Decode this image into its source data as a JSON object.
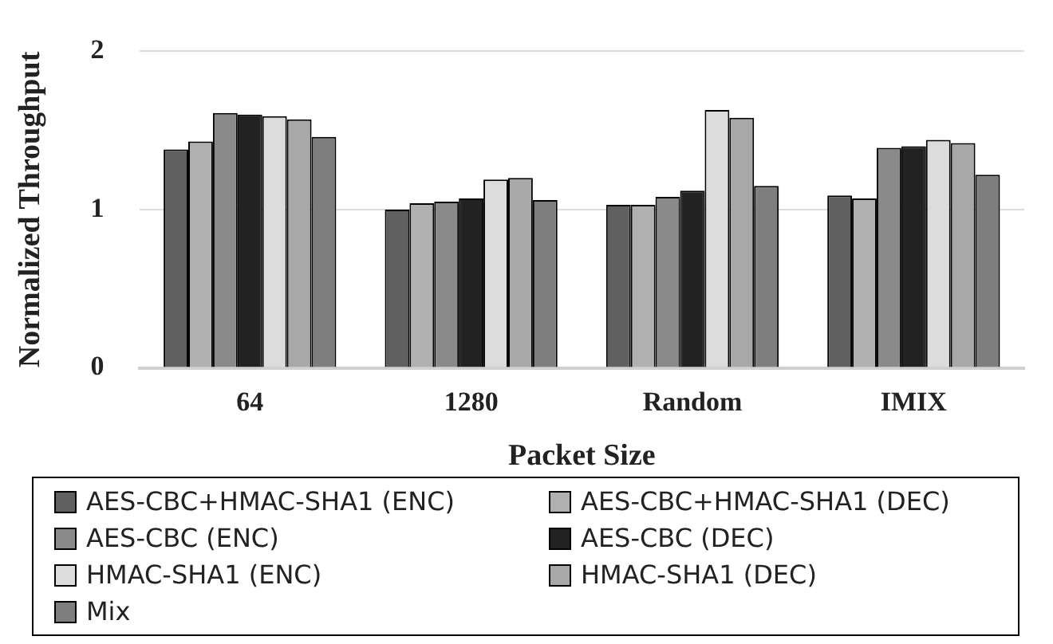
{
  "chart_data": {
    "type": "bar",
    "xlabel": "Packet Size",
    "ylabel": "Normalized Throughput",
    "categories": [
      "64",
      "1280",
      "Random",
      "IMIX"
    ],
    "series": [
      {
        "name": "AES-CBC+HMAC-SHA1 (ENC)",
        "color": "#606060",
        "values": [
          1.38,
          1.0,
          1.03,
          1.09
        ]
      },
      {
        "name": "AES-CBC+HMAC-SHA1 (DEC)",
        "color": "#b0b0b0",
        "values": [
          1.43,
          1.04,
          1.03,
          1.07
        ]
      },
      {
        "name": "AES-CBC (ENC)",
        "color": "#8a8a8a",
        "values": [
          1.61,
          1.05,
          1.08,
          1.39
        ]
      },
      {
        "name": "AES-CBC (DEC)",
        "color": "#222222",
        "values": [
          1.6,
          1.07,
          1.12,
          1.4
        ]
      },
      {
        "name": "HMAC-SHA1 (ENC)",
        "color": "#dcdcdc",
        "values": [
          1.59,
          1.19,
          1.63,
          1.44
        ]
      },
      {
        "name": "HMAC-SHA1 (DEC)",
        "color": "#a8a8a8",
        "values": [
          1.57,
          1.2,
          1.58,
          1.42
        ]
      },
      {
        "name": "Mix",
        "color": "#7e7e7e",
        "values": [
          1.46,
          1.06,
          1.15,
          1.22
        ]
      }
    ],
    "ylim": [
      0,
      2
    ],
    "yticks": [
      0,
      1,
      2
    ],
    "grid": "y",
    "legend": "bottom"
  }
}
